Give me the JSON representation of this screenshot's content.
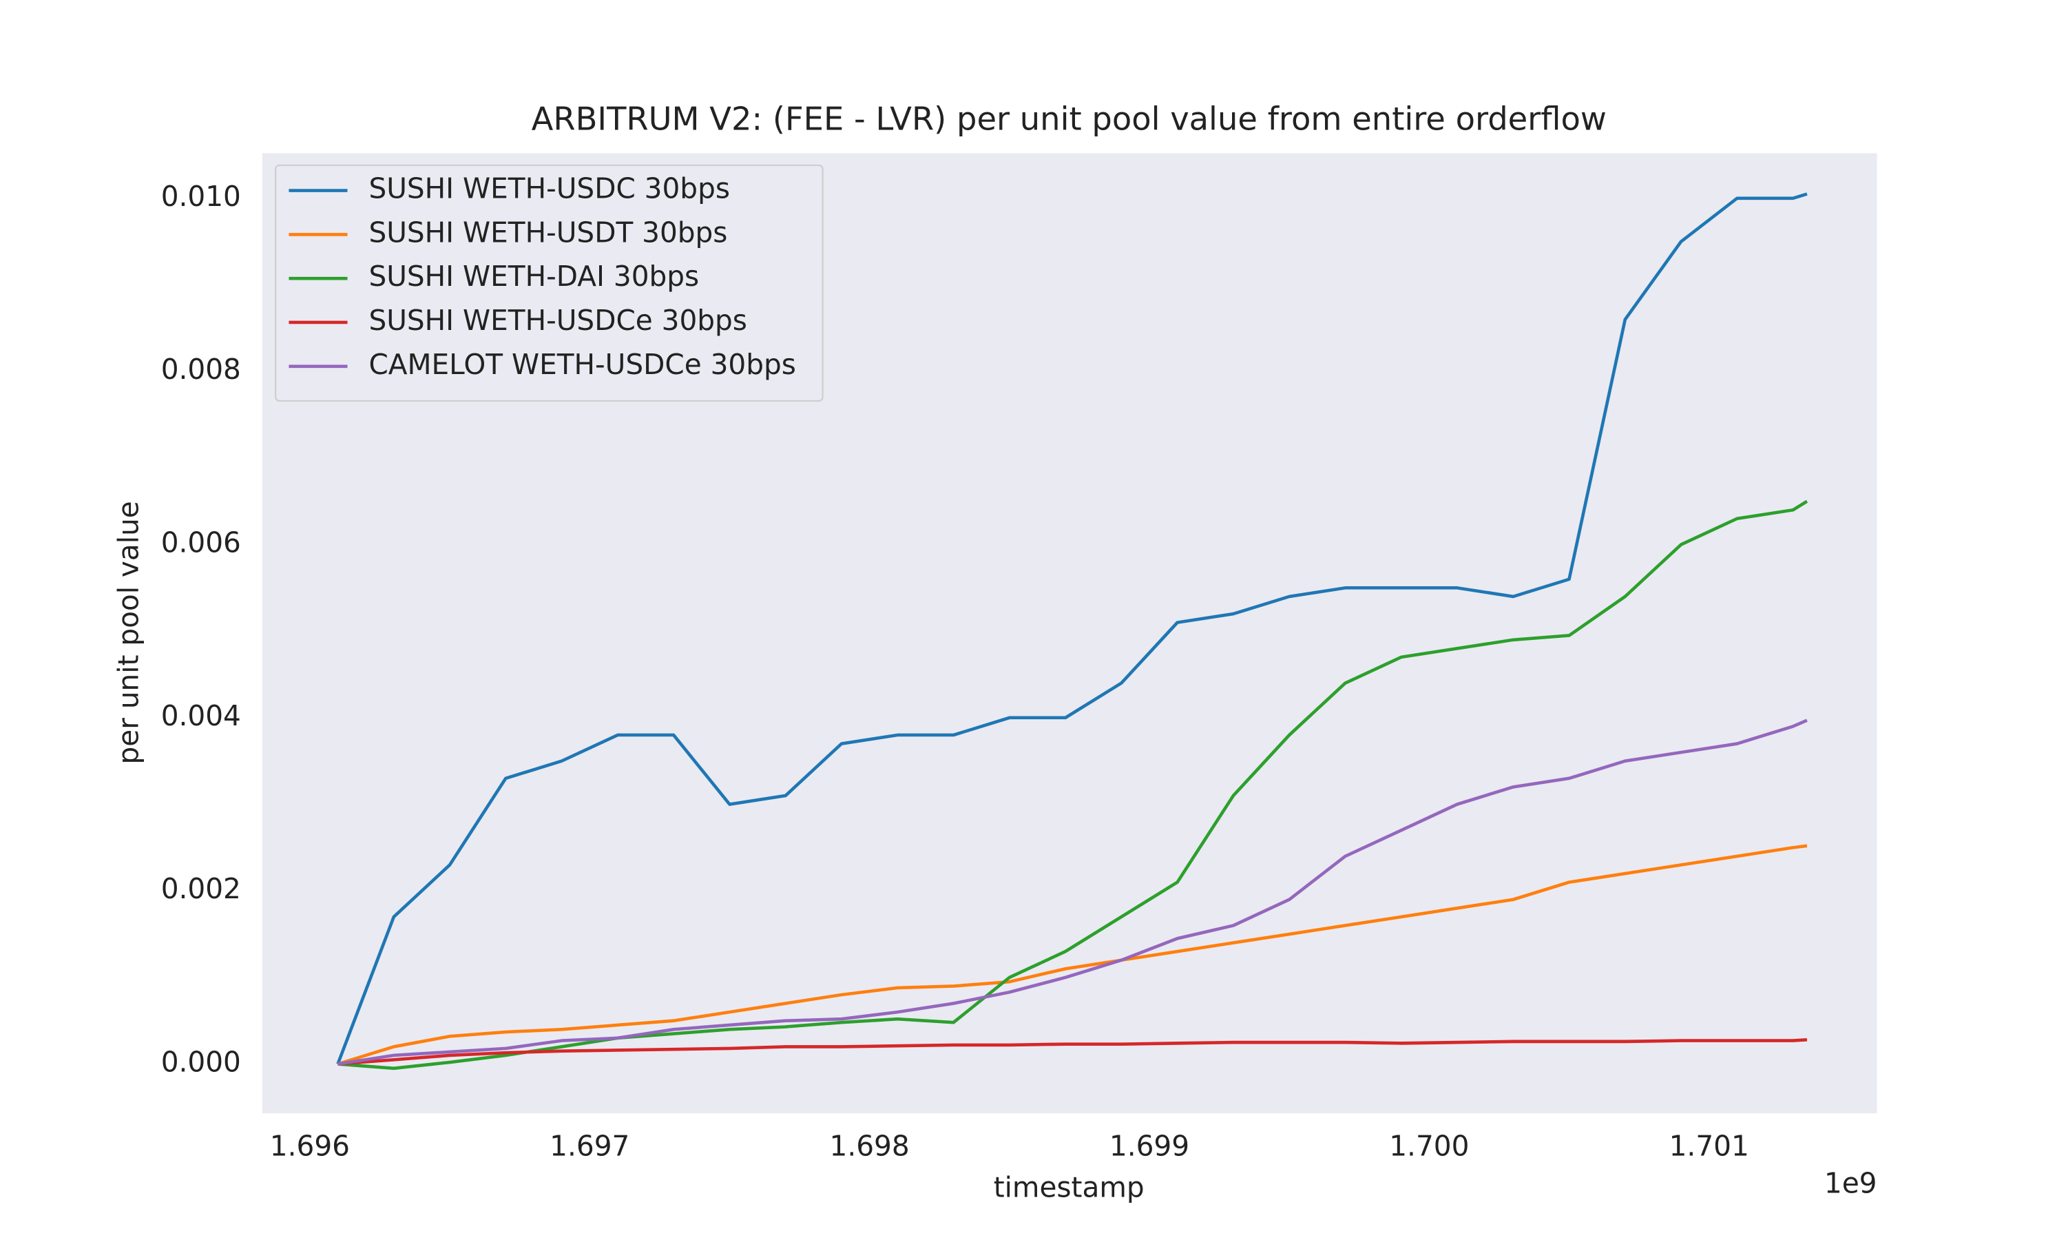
{
  "chart_data": {
    "type": "line",
    "title": "ARBITRUM V2: (FEE - LVR) per unit pool value from entire orderflow",
    "x_label": "timestamp",
    "y_label": "per unit pool value",
    "x_offset_label": "1e9",
    "x": [
      1696100000,
      1696300000,
      1696500000,
      1696700000,
      1696900000,
      1697100000,
      1697300000,
      1697500000,
      1697700000,
      1697900000,
      1698100000,
      1698300000,
      1698500000,
      1698700000,
      1698900000,
      1699100000,
      1699300000,
      1699500000,
      1699700000,
      1699900000,
      1700100000,
      1700300000,
      1700500000,
      1700700000,
      1700900000,
      1701100000,
      1701300000,
      1701350000
    ],
    "series": [
      {
        "name": "SUSHI WETH-USDC 30bps",
        "color": "#1f77b4",
        "values": [
          0,
          0.0017,
          0.0023,
          0.0033,
          0.0035,
          0.0038,
          0.0038,
          0.003,
          0.0031,
          0.0037,
          0.0038,
          0.0038,
          0.004,
          0.004,
          0.0044,
          0.0051,
          0.0052,
          0.0054,
          0.0055,
          0.0055,
          0.0055,
          0.0054,
          0.0056,
          0.0086,
          0.0095,
          0.01,
          0.01,
          0.01005
        ]
      },
      {
        "name": "SUSHI WETH-USDT 30bps",
        "color": "#ff7f0e",
        "values": [
          0,
          0.0002,
          0.00032,
          0.00037,
          0.0004,
          0.00045,
          0.0005,
          0.0006,
          0.0007,
          0.0008,
          0.00088,
          0.0009,
          0.00095,
          0.0011,
          0.0012,
          0.0013,
          0.0014,
          0.0015,
          0.0016,
          0.0017,
          0.0018,
          0.0019,
          0.0021,
          0.0022,
          0.0023,
          0.0024,
          0.0025,
          0.00252
        ]
      },
      {
        "name": "SUSHI WETH-DAI 30bps",
        "color": "#2ca02c",
        "values": [
          0,
          -5e-05,
          2e-05,
          0.0001,
          0.0002,
          0.0003,
          0.00035,
          0.0004,
          0.00043,
          0.00048,
          0.00052,
          0.00048,
          0.001,
          0.0013,
          0.0017,
          0.0021,
          0.0031,
          0.0038,
          0.0044,
          0.0047,
          0.0048,
          0.0049,
          0.00495,
          0.0054,
          0.006,
          0.0063,
          0.0064,
          0.0065
        ]
      },
      {
        "name": "SUSHI WETH-USDCe 30bps",
        "color": "#d62728",
        "values": [
          0,
          5e-05,
          0.0001,
          0.00013,
          0.00015,
          0.00016,
          0.00017,
          0.00018,
          0.0002,
          0.0002,
          0.00021,
          0.00022,
          0.00022,
          0.00023,
          0.00023,
          0.00024,
          0.00025,
          0.00025,
          0.00025,
          0.00024,
          0.00025,
          0.00026,
          0.00026,
          0.00026,
          0.00027,
          0.00027,
          0.00027,
          0.00028
        ]
      },
      {
        "name": "CAMELOT WETH-USDCe 30bps",
        "color": "#9467bd",
        "values": [
          0,
          0.0001,
          0.00014,
          0.00018,
          0.00027,
          0.0003,
          0.0004,
          0.00045,
          0.0005,
          0.00052,
          0.0006,
          0.0007,
          0.00083,
          0.001,
          0.0012,
          0.00145,
          0.0016,
          0.0019,
          0.0024,
          0.0027,
          0.003,
          0.0032,
          0.0033,
          0.0035,
          0.0036,
          0.0037,
          0.0039,
          0.00397
        ]
      }
    ],
    "xlim": [
      1695830000,
      1701600000
    ],
    "xticks": [
      {
        "value": 1696000000,
        "label": "1.696"
      },
      {
        "value": 1697000000,
        "label": "1.697"
      },
      {
        "value": 1698000000,
        "label": "1.698"
      },
      {
        "value": 1699000000,
        "label": "1.699"
      },
      {
        "value": 1700000000,
        "label": "1.700"
      },
      {
        "value": 1701000000,
        "label": "1.701"
      }
    ],
    "ylim": [
      -0.00057,
      0.01052
    ],
    "yticks": [
      {
        "value": 0,
        "label": "0.000"
      },
      0.002,
      0.004,
      0.006,
      0.008,
      {
        "value": 0.01,
        "label": "0.010"
      }
    ],
    "grid": false,
    "legend": "upper left",
    "background": "#eaeaf2"
  }
}
